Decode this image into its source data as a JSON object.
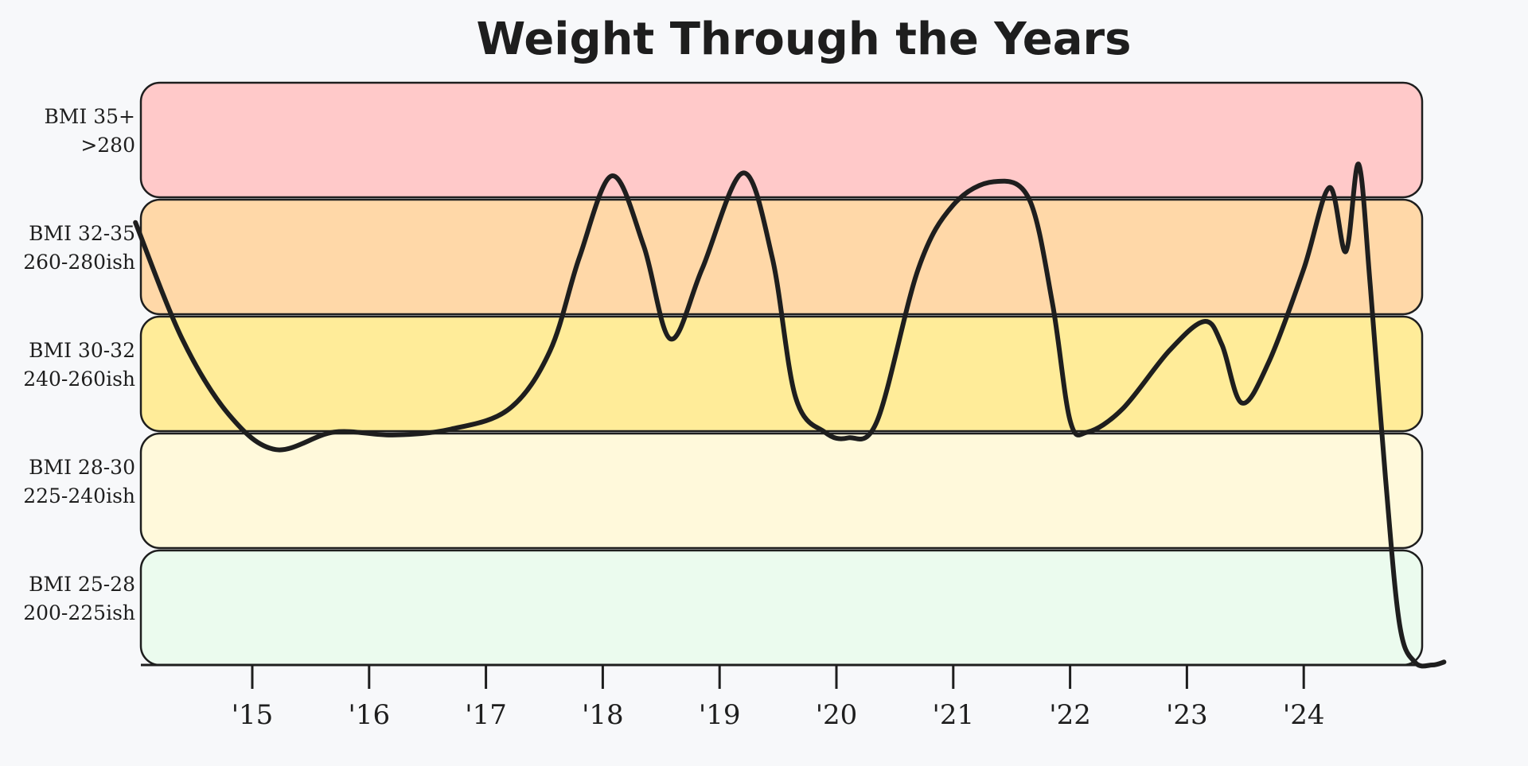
{
  "chart_data": {
    "type": "line",
    "title": "Weight Through the Years",
    "xlabel": "",
    "ylabel": "",
    "x_tick_labels": [
      "'15",
      "'16",
      "'17",
      "'18",
      "'19",
      "'20",
      "'21",
      "'22",
      "'23",
      "'24"
    ],
    "x_tick_years": [
      2015,
      2016,
      2017,
      2018,
      2019,
      2020,
      2021,
      2022,
      2023,
      2024
    ],
    "xlim": [
      2014.0,
      2025.0
    ],
    "ylim": [
      200,
      300
    ],
    "bands": [
      {
        "line1": "BMI 35+",
        "line2": ">280",
        "min": 280,
        "max": 300,
        "color": "#ffc9c9"
      },
      {
        "line1": "BMI 32-35",
        "line2": "260-280ish",
        "min": 260,
        "max": 280,
        "color": "#ffd8a8"
      },
      {
        "line1": "BMI 30-32",
        "line2": "240-260ish",
        "min": 240,
        "max": 260,
        "color": "#ffec99"
      },
      {
        "line1": "BMI 28-30",
        "line2": "225-240ish",
        "min": 220,
        "max": 240,
        "color": "#fff9db"
      },
      {
        "line1": "BMI 25-28",
        "line2": "200-225ish",
        "min": 200,
        "max": 220,
        "color": "#ebfbee"
      }
    ],
    "series": [
      {
        "name": "Weight",
        "color": "#1e1e1e",
        "points": [
          [
            2014.0,
            276
          ],
          [
            2014.4,
            256
          ],
          [
            2014.8,
            243
          ],
          [
            2015.2,
            237
          ],
          [
            2015.7,
            240
          ],
          [
            2016.2,
            239.5
          ],
          [
            2016.7,
            240.5
          ],
          [
            2017.2,
            244
          ],
          [
            2017.55,
            254
          ],
          [
            2017.8,
            270
          ],
          [
            2018.08,
            284
          ],
          [
            2018.35,
            272
          ],
          [
            2018.58,
            256
          ],
          [
            2018.85,
            268
          ],
          [
            2019.2,
            284.5
          ],
          [
            2019.45,
            270
          ],
          [
            2019.65,
            246
          ],
          [
            2019.9,
            240
          ],
          [
            2020.1,
            239
          ],
          [
            2020.35,
            242
          ],
          [
            2020.7,
            268
          ],
          [
            2021.0,
            279
          ],
          [
            2021.35,
            283
          ],
          [
            2021.65,
            280
          ],
          [
            2021.85,
            262
          ],
          [
            2022.0,
            242
          ],
          [
            2022.15,
            240
          ],
          [
            2022.45,
            244
          ],
          [
            2022.85,
            254
          ],
          [
            2023.15,
            259
          ],
          [
            2023.3,
            255
          ],
          [
            2023.47,
            245
          ],
          [
            2023.7,
            252
          ],
          [
            2024.0,
            268
          ],
          [
            2024.22,
            282
          ],
          [
            2024.36,
            271
          ],
          [
            2024.47,
            286
          ],
          [
            2024.57,
            265
          ],
          [
            2024.7,
            232
          ],
          [
            2024.82,
            207
          ],
          [
            2024.95,
            200.5
          ],
          [
            2025.1,
            200
          ],
          [
            2025.2,
            200.5
          ]
        ]
      }
    ]
  }
}
